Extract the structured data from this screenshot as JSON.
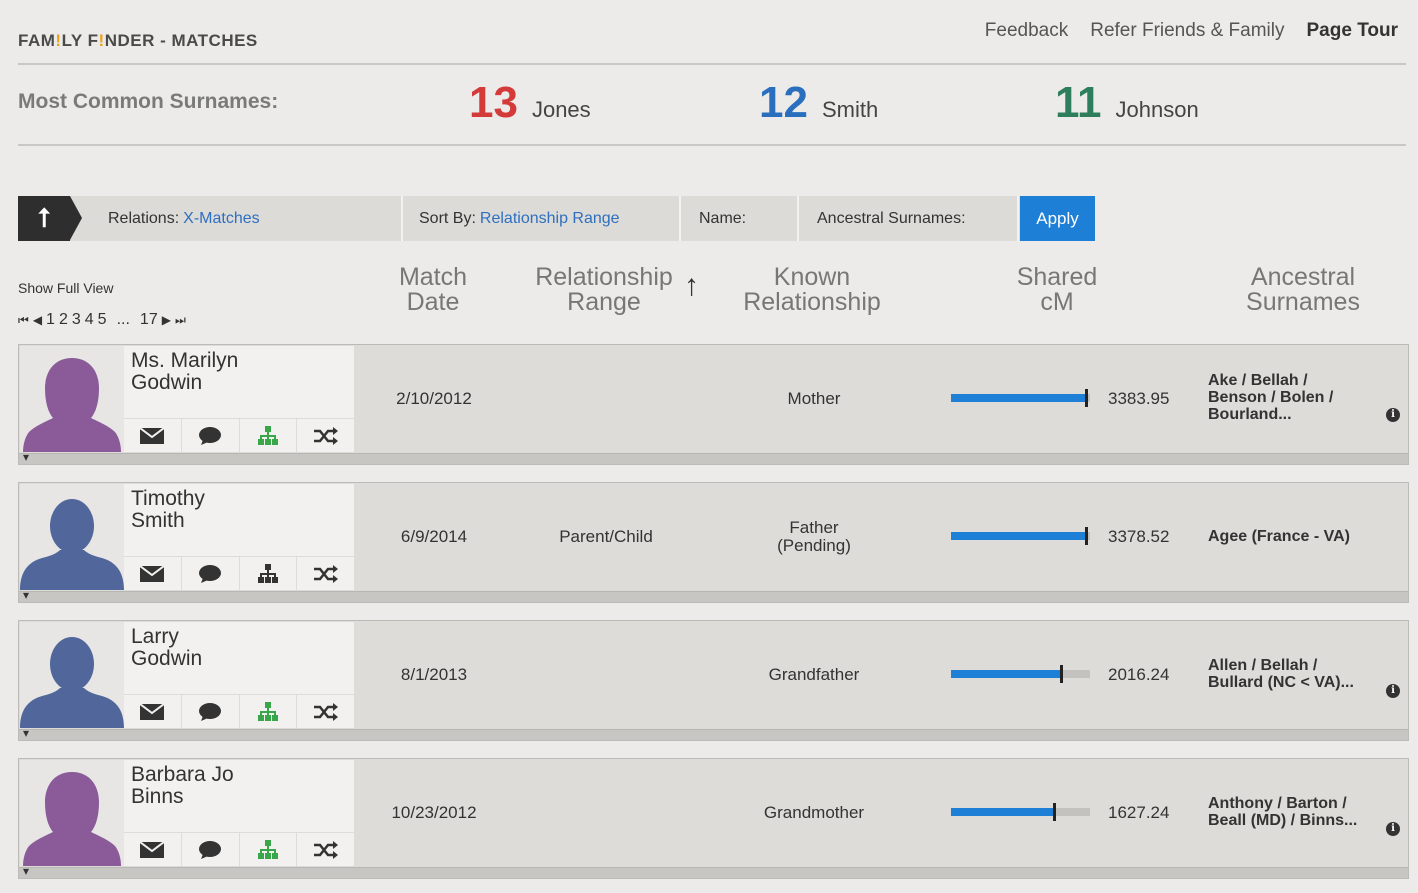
{
  "header": {
    "brand_part1": "FAM",
    "brand_dot1": "!",
    "brand_part2": "LY F",
    "brand_dot2": "!",
    "brand_part3": "NDER - MATCHES",
    "links": [
      "Feedback",
      "Refer Friends & Family",
      "Page Tour"
    ]
  },
  "surnames": {
    "label": "Most Common Surnames:",
    "items": [
      {
        "count": "13",
        "name": "Jones",
        "color": "#d43a3a"
      },
      {
        "count": "12",
        "name": "Smith",
        "color": "#2a6fbe"
      },
      {
        "count": "11",
        "name": "Johnson",
        "color": "#2e7d5b"
      }
    ]
  },
  "filters": {
    "relations_label": "Relations:",
    "relations_value": "X-Matches",
    "sort_label": "Sort By:",
    "sort_value": "Relationship Range",
    "name_label": "Name:",
    "ancestral_label": "Ancestral Surnames:",
    "apply": "Apply"
  },
  "pager": {
    "show_full_view": "Show Full View",
    "pages": [
      "1",
      "2",
      "3",
      "4",
      "5"
    ],
    "ellipsis": "...",
    "last": "17"
  },
  "columns": {
    "match_date_1": "Match",
    "match_date_2": "Date",
    "range_1": "Relationship",
    "range_2": "Range",
    "known_1": "Known",
    "known_2": "Relationship",
    "cm_1": "Shared",
    "cm_2": "cM",
    "anc_1": "Ancestral",
    "anc_2": "Surnames"
  },
  "matches": [
    {
      "name_1": "Ms. Marilyn",
      "name_2": "Godwin",
      "gender": "female",
      "date": "2/10/2012",
      "range": "",
      "known_1": "Mother",
      "known_2": "",
      "cm": "3383.95",
      "cm_fraction": 0.98,
      "anc_1": "Ake / Bellah /",
      "anc_2": "Benson / Bolen /",
      "anc_3": "Bourland...",
      "tree": "green",
      "info": "i"
    },
    {
      "name_1": "Timothy",
      "name_2": "Smith",
      "gender": "male",
      "date": "6/9/2014",
      "range": "Parent/Child",
      "known_1": "Father",
      "known_2": "(Pending)",
      "cm": "3378.52",
      "cm_fraction": 0.98,
      "anc_1": "Agee (France - VA)",
      "anc_2": "",
      "anc_3": "",
      "tree": "gray",
      "info": ""
    },
    {
      "name_1": "Larry",
      "name_2": "Godwin",
      "gender": "male",
      "date": "8/1/2013",
      "range": "",
      "known_1": "Grandfather",
      "known_2": "",
      "cm": "2016.24",
      "cm_fraction": 0.8,
      "anc_1": "Allen / Bellah /",
      "anc_2": "Bullard (NC < VA)...",
      "anc_3": "",
      "tree": "green",
      "info": "i"
    },
    {
      "name_1": "Barbara Jo",
      "name_2": "Binns",
      "gender": "female",
      "date": "10/23/2012",
      "range": "",
      "known_1": "Grandmother",
      "known_2": "",
      "cm": "1627.24",
      "cm_fraction": 0.75,
      "anc_1": "Anthony / Barton /",
      "anc_2": "Beall (MD) / Binns...",
      "anc_3": "",
      "tree": "green",
      "info": "i"
    }
  ]
}
